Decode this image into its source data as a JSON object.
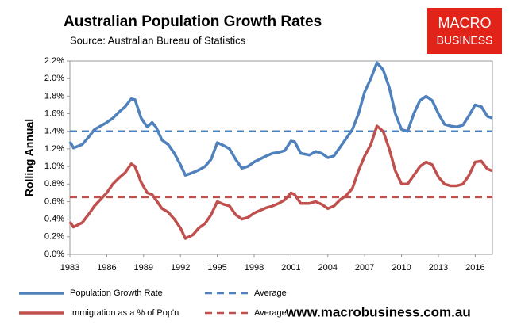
{
  "chart_data": {
    "type": "line",
    "title": "Australian Population Growth Rates",
    "subtitle": "Source: Australian Bureau of Statistics",
    "y_label": "Rolling Annual",
    "logo": [
      "MACRO",
      "BUSINESS"
    ],
    "footer": "www.macrobusiness.com.au",
    "x": [
      1983,
      1983.3,
      1984,
      1984.5,
      1985,
      1986,
      1986.5,
      1987,
      1987.5,
      1988,
      1988.3,
      1988.8,
      1989.3,
      1989.7,
      1990,
      1990.5,
      1991,
      1991.5,
      1992,
      1992.4,
      1993,
      1993.5,
      1994,
      1994.5,
      1995,
      1995.5,
      1996,
      1996.5,
      1997,
      1997.5,
      1998,
      1999,
      1999.5,
      2000,
      2000.5,
      2001,
      2001.3,
      2001.8,
      2002.5,
      2003,
      2003.5,
      2004,
      2004.5,
      2005,
      2005.5,
      2006,
      2006.5,
      2007,
      2007.5,
      2008,
      2008.5,
      2009,
      2009.5,
      2010,
      2010.5,
      2011,
      2011.5,
      2012,
      2012.5,
      2013,
      2013.5,
      2014,
      2014.5,
      2015,
      2015.5,
      2016,
      2016.5,
      2017,
      2017.4
    ],
    "series": [
      {
        "name": "Population Growth Rate",
        "color": "#4f81bd",
        "values": [
          1.28,
          1.21,
          1.25,
          1.33,
          1.42,
          1.5,
          1.55,
          1.62,
          1.68,
          1.77,
          1.76,
          1.55,
          1.45,
          1.5,
          1.45,
          1.3,
          1.25,
          1.15,
          1.02,
          0.9,
          0.93,
          0.96,
          1.0,
          1.08,
          1.27,
          1.24,
          1.2,
          1.08,
          0.98,
          1.0,
          1.05,
          1.12,
          1.15,
          1.16,
          1.18,
          1.29,
          1.28,
          1.15,
          1.13,
          1.17,
          1.15,
          1.1,
          1.12,
          1.22,
          1.32,
          1.42,
          1.6,
          1.85,
          2.0,
          2.18,
          2.1,
          1.9,
          1.6,
          1.42,
          1.4,
          1.6,
          1.75,
          1.8,
          1.75,
          1.6,
          1.48,
          1.46,
          1.45,
          1.47,
          1.58,
          1.7,
          1.68,
          1.57,
          1.55
        ]
      },
      {
        "name": "Immigration as a % of Pop'n",
        "color": "#c0504d",
        "values": [
          0.37,
          0.31,
          0.36,
          0.45,
          0.55,
          0.7,
          0.8,
          0.87,
          0.93,
          1.03,
          1.0,
          0.82,
          0.7,
          0.68,
          0.62,
          0.52,
          0.48,
          0.4,
          0.3,
          0.18,
          0.22,
          0.3,
          0.35,
          0.45,
          0.6,
          0.57,
          0.55,
          0.45,
          0.4,
          0.42,
          0.47,
          0.53,
          0.55,
          0.58,
          0.62,
          0.7,
          0.68,
          0.58,
          0.58,
          0.6,
          0.57,
          0.52,
          0.55,
          0.62,
          0.67,
          0.75,
          0.95,
          1.12,
          1.25,
          1.46,
          1.4,
          1.2,
          0.95,
          0.8,
          0.8,
          0.9,
          1.0,
          1.05,
          1.02,
          0.88,
          0.8,
          0.78,
          0.78,
          0.8,
          0.9,
          1.05,
          1.06,
          0.97,
          0.95
        ]
      }
    ],
    "averages": [
      {
        "name": "Average",
        "color": "#4f81bd",
        "value": 1.4
      },
      {
        "name": "Average",
        "color": "#c0504d",
        "value": 0.65
      }
    ],
    "xlim": [
      1983,
      2017.4
    ],
    "xticks": [
      1983,
      1986,
      1989,
      1992,
      1995,
      1998,
      2001,
      2004,
      2007,
      2010,
      2013,
      2016
    ],
    "ylim": [
      0,
      2.2
    ],
    "yticks": [
      {
        "value": 0,
        "label": "0.0%"
      },
      {
        "value": 0.2,
        "label": "0.2%"
      },
      {
        "value": 0.4,
        "label": "0.4%"
      },
      {
        "value": 0.6,
        "label": "0.6%"
      },
      {
        "value": 0.8,
        "label": "0.8%"
      },
      {
        "value": 1.0,
        "label": "1.0%"
      },
      {
        "value": 1.2,
        "label": "1.2%"
      },
      {
        "value": 1.4,
        "label": "1.4%"
      },
      {
        "value": 1.6,
        "label": "1.6%"
      },
      {
        "value": 1.8,
        "label": "1.8%"
      },
      {
        "value": 2.0,
        "label": "2.0%"
      },
      {
        "value": 2.2,
        "label": "2.2%"
      }
    ]
  }
}
